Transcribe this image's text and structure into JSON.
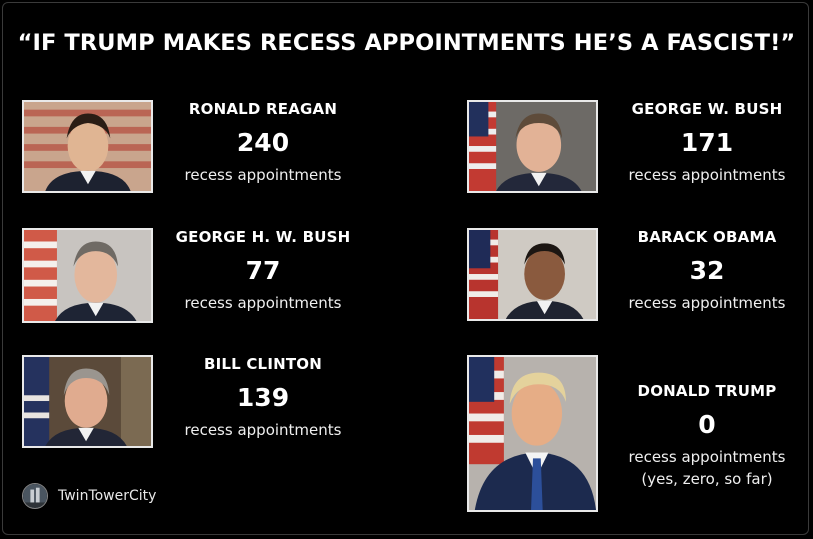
{
  "title": "“IF TRUMP MAKES RECESS APPOINTMENTS HE’S A FASCIST!”",
  "presidents": [
    {
      "name": "RONALD REAGAN",
      "count": "240",
      "caption": "recess appointments"
    },
    {
      "name": "GEORGE W. BUSH",
      "count": "171",
      "caption": "recess appointments"
    },
    {
      "name": "GEORGE H. W. BUSH",
      "count": "77",
      "caption": "recess appointments"
    },
    {
      "name": "BARACK OBAMA",
      "count": "32",
      "caption": "recess appointments"
    },
    {
      "name": "BILL CLINTON",
      "count": "139",
      "caption": "recess appointments"
    },
    {
      "name": "DONALD TRUMP",
      "count": "0",
      "caption": "recess appointments",
      "note": "(yes, zero, so far)"
    }
  ],
  "credit": {
    "name": "TwinTowerCity"
  },
  "colors": {
    "background": "#000000",
    "text": "#ffffff"
  }
}
